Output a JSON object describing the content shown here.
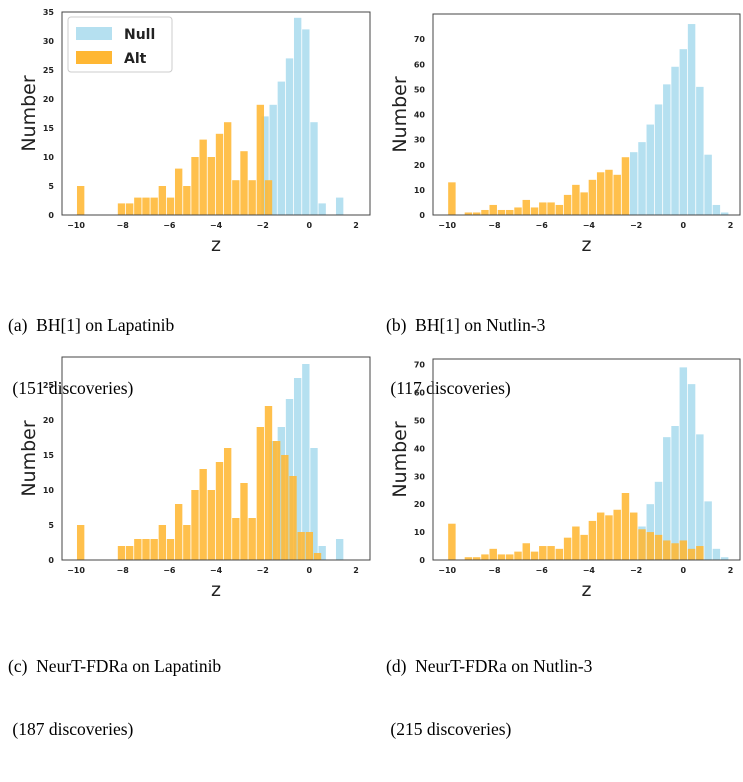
{
  "colors": {
    "null": "#b5e0f0",
    "alt": "#ffb733",
    "overlap": "#d8b26a",
    "frame": "#444444"
  },
  "chart_data": [
    {
      "type": "bar",
      "xlabel": "z",
      "ylabel": "Number",
      "xlim": [
        -10.6,
        2.6
      ],
      "ylim": [
        0,
        35
      ],
      "xticks": [
        -10,
        -8,
        -6,
        -4,
        -2,
        0,
        2
      ],
      "yticks": [
        0,
        5,
        10,
        15,
        20,
        25,
        30,
        35
      ],
      "legend": {
        "placement": "top-left",
        "entries": [
          "Null",
          "Alt"
        ]
      },
      "bin_width": 0.35,
      "series": [
        {
          "name": "Null",
          "x": [
            -1.9,
            -1.55,
            -1.2,
            -0.85,
            -0.5,
            -0.15,
            0.2,
            0.55,
            1.3
          ],
          "values": [
            17,
            19,
            23,
            27,
            34,
            32,
            16,
            2,
            3
          ]
        },
        {
          "name": "Alt",
          "x": [
            -9.8,
            -8.05,
            -7.7,
            -7.35,
            -7.0,
            -6.65,
            -6.3,
            -5.95,
            -5.6,
            -5.25,
            -4.9,
            -4.55,
            -4.2,
            -3.85,
            -3.5,
            -3.15,
            -2.8,
            -2.45,
            -2.1,
            -1.75
          ],
          "values": [
            5,
            2,
            2,
            3,
            3,
            3,
            5,
            3,
            8,
            5,
            10,
            13,
            10,
            14,
            16,
            6,
            11,
            6,
            19,
            6
          ]
        }
      ]
    },
    {
      "type": "bar",
      "xlabel": "z",
      "ylabel": "Number",
      "xlim": [
        -10.6,
        2.4
      ],
      "ylim": [
        0,
        80
      ],
      "xticks": [
        -10,
        -8,
        -6,
        -4,
        -2,
        0,
        2
      ],
      "yticks": [
        0,
        10,
        20,
        30,
        40,
        50,
        60,
        70
      ],
      "bin_width": 0.35,
      "series": [
        {
          "name": "Null",
          "x": [
            -2.1,
            -1.75,
            -1.4,
            -1.05,
            -0.7,
            -0.35,
            0.0,
            0.35,
            0.7,
            1.05,
            1.4,
            1.75
          ],
          "values": [
            25,
            29,
            36,
            44,
            52,
            59,
            66,
            76,
            51,
            24,
            4,
            1
          ]
        },
        {
          "name": "Alt",
          "x": [
            -9.8,
            -9.1,
            -8.75,
            -8.4,
            -8.05,
            -7.7,
            -7.35,
            -7.0,
            -6.65,
            -6.3,
            -5.95,
            -5.6,
            -5.25,
            -4.9,
            -4.55,
            -4.2,
            -3.85,
            -3.5,
            -3.15,
            -2.8,
            -2.45
          ],
          "values": [
            13,
            1,
            1,
            2,
            4,
            2,
            2,
            3,
            6,
            3,
            5,
            5,
            4,
            8,
            12,
            9,
            14,
            17,
            18,
            16,
            23
          ]
        }
      ]
    },
    {
      "type": "bar",
      "xlabel": "z",
      "ylabel": "Number",
      "xlim": [
        -10.6,
        2.6
      ],
      "ylim": [
        0,
        29
      ],
      "xticks": [
        -10,
        -8,
        -6,
        -4,
        -2,
        0,
        2
      ],
      "yticks": [
        0,
        5,
        10,
        15,
        20,
        25
      ],
      "bin_width": 0.35,
      "series": [
        {
          "name": "Null",
          "x": [
            -1.55,
            -1.2,
            -0.85,
            -0.5,
            -0.15,
            0.2,
            0.55,
            1.3
          ],
          "values": [
            17,
            19,
            23,
            26,
            28,
            16,
            2,
            3
          ]
        },
        {
          "name": "Alt",
          "x": [
            -9.8,
            -8.05,
            -7.7,
            -7.35,
            -7.0,
            -6.65,
            -6.3,
            -5.95,
            -5.6,
            -5.25,
            -4.9,
            -4.55,
            -4.2,
            -3.85,
            -3.5,
            -3.15,
            -2.8,
            -2.45,
            -2.1,
            -1.75,
            -1.4,
            -1.05,
            -0.7,
            -0.35,
            0.0,
            0.35
          ],
          "values": [
            5,
            2,
            2,
            3,
            3,
            3,
            5,
            3,
            8,
            5,
            10,
            13,
            10,
            14,
            16,
            6,
            11,
            6,
            19,
            22,
            17,
            15,
            12,
            4,
            4,
            1
          ]
        }
      ]
    },
    {
      "type": "bar",
      "xlabel": "z",
      "ylabel": "Number",
      "xlim": [
        -10.6,
        2.4
      ],
      "ylim": [
        0,
        72
      ],
      "xticks": [
        -10,
        -8,
        -6,
        -4,
        -2,
        0,
        2
      ],
      "yticks": [
        0,
        10,
        20,
        30,
        40,
        50,
        60,
        70
      ],
      "bin_width": 0.35,
      "series": [
        {
          "name": "Null",
          "x": [
            -1.75,
            -1.4,
            -1.05,
            -0.7,
            -0.35,
            0.0,
            0.35,
            0.7,
            1.05,
            1.4,
            1.75
          ],
          "values": [
            12,
            20,
            28,
            44,
            48,
            69,
            63,
            45,
            21,
            4,
            1
          ]
        },
        {
          "name": "Alt",
          "x": [
            -9.8,
            -9.1,
            -8.75,
            -8.4,
            -8.05,
            -7.7,
            -7.35,
            -7.0,
            -6.65,
            -6.3,
            -5.95,
            -5.6,
            -5.25,
            -4.9,
            -4.55,
            -4.2,
            -3.85,
            -3.5,
            -3.15,
            -2.8,
            -2.45,
            -2.1,
            -1.75,
            -1.4,
            -1.05,
            -0.7,
            -0.35,
            0.0,
            0.35,
            0.7
          ],
          "values": [
            13,
            1,
            1,
            2,
            4,
            2,
            2,
            3,
            6,
            3,
            5,
            5,
            4,
            8,
            12,
            9,
            14,
            17,
            16,
            18,
            24,
            17,
            11,
            10,
            9,
            7,
            6,
            7,
            4,
            5
          ]
        }
      ]
    }
  ],
  "captions": [
    {
      "line1": "(a)  BH[1] on Lapatinib",
      "line2": " (151 discoveries)"
    },
    {
      "line1": "(b)  BH[1] on Nutlin-3",
      "line2": " (117 discoveries)"
    },
    {
      "line1": "(c)  NeurT-FDRa on Lapatinib",
      "line2": " (187 discoveries)"
    },
    {
      "line1": "(d)  NeurT-FDRa on Nutlin-3",
      "line2": " (215 discoveries)"
    }
  ]
}
